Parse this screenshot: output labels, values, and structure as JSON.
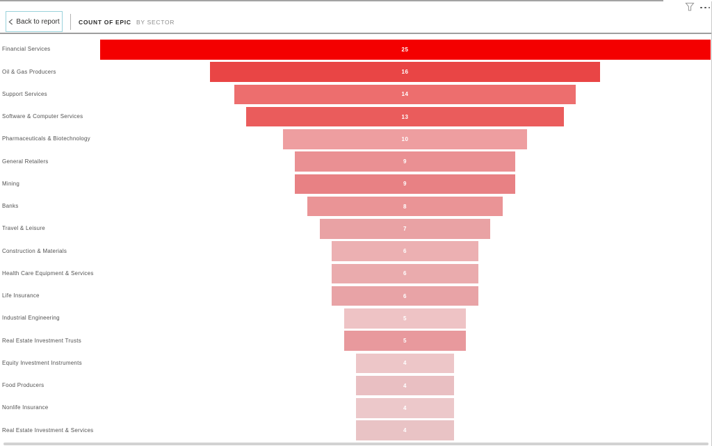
{
  "header": {
    "back_button": "Back to report",
    "title": "COUNT OF EPIC",
    "subtitle": "BY SECTOR"
  },
  "icons": {
    "filter": "filter-icon",
    "more_options": "more-options-icon",
    "back_chevron": "chevron-left-icon"
  },
  "chart_data": {
    "type": "funnel",
    "title": "Count of EPIC by Sector",
    "orientation": "horizontal-centered",
    "categories": [
      "Financial Services",
      "Oil & Gas Producers",
      "Support Services",
      "Software & Computer Services",
      "Pharmaceuticals & Biotechnology",
      "General Retailers",
      "Mining",
      "Banks",
      "Travel & Leisure",
      "Construction & Materials",
      "Health Care Equipment & Services",
      "Life Insurance",
      "Industrial Engineering",
      "Real Estate Investment Trusts",
      "Equity Investment Instruments",
      "Food Producers",
      "Nonlife Insurance",
      "Real Estate Investment & Services"
    ],
    "values": [
      25,
      16,
      14,
      13,
      10,
      9,
      9,
      8,
      7,
      6,
      6,
      6,
      5,
      5,
      4,
      4,
      4,
      4
    ],
    "bar_colors": [
      "#f40000",
      "#e94545",
      "#ed6e6e",
      "#ea5c5c",
      "#ee9ea0",
      "#ea9093",
      "#e88184",
      "#ea9496",
      "#e9a2a4",
      "#ecb0b2",
      "#eaabad",
      "#e8a3a6",
      "#eec3c5",
      "#e8999d",
      "#edc6c8",
      "#e9bfc2",
      "#ecc8ca",
      "#e9c3c5"
    ],
    "value_label_color": "#ffffff",
    "xmax": 25
  }
}
